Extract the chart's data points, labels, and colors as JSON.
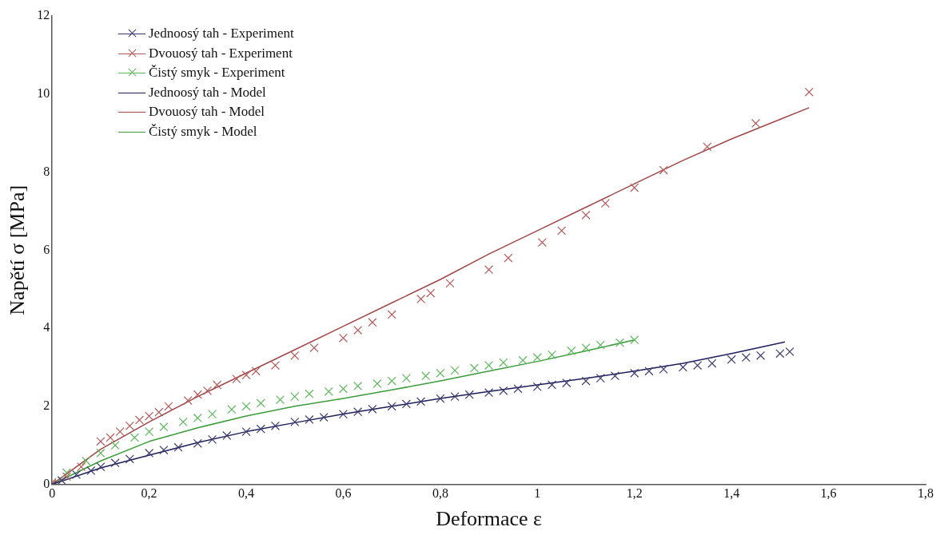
{
  "chart_data": {
    "type": "scatter",
    "xlabel": "Deformace ε",
    "ylabel": "Napětí σ [MPa]",
    "xlim": [
      0,
      1.8
    ],
    "xticks": [
      0,
      {
        "value": 0.2,
        "label": "0,2"
      },
      {
        "value": 0.4,
        "label": "0,4"
      },
      {
        "value": 0.6,
        "label": "0,6"
      },
      {
        "value": 0.8,
        "label": "0,8"
      },
      1,
      {
        "value": 1.2,
        "label": "1,2"
      },
      {
        "value": 1.4,
        "label": "1,4"
      },
      {
        "value": 1.6,
        "label": "1,6"
      },
      {
        "value": 1.8,
        "label": "1,8"
      }
    ],
    "ylim": [
      0,
      12
    ],
    "yticks": [
      0,
      2,
      4,
      6,
      8,
      10,
      12
    ],
    "grid": false,
    "legend": "top left",
    "series": [
      {
        "name": "Jednoosý tah - Experiment",
        "type": "scatter",
        "marker": "cross",
        "color": "#3a3a70",
        "x": [
          0,
          0.02,
          0.05,
          0.08,
          0.1,
          0.13,
          0.16,
          0.2,
          0.23,
          0.26,
          0.3,
          0.33,
          0.36,
          0.4,
          0.43,
          0.46,
          0.5,
          0.53,
          0.56,
          0.6,
          0.63,
          0.66,
          0.7,
          0.73,
          0.76,
          0.8,
          0.83,
          0.86,
          0.9,
          0.93,
          0.96,
          1.0,
          1.03,
          1.06,
          1.1,
          1.13,
          1.16,
          1.2,
          1.23,
          1.26,
          1.3,
          1.33,
          1.36,
          1.4,
          1.43,
          1.46,
          1.5,
          1.52
        ],
        "values": [
          0,
          0.1,
          0.25,
          0.35,
          0.45,
          0.55,
          0.65,
          0.8,
          0.88,
          0.95,
          1.05,
          1.15,
          1.25,
          1.35,
          1.42,
          1.5,
          1.6,
          1.66,
          1.72,
          1.8,
          1.86,
          1.93,
          2.0,
          2.06,
          2.12,
          2.2,
          2.25,
          2.3,
          2.35,
          2.4,
          2.45,
          2.5,
          2.55,
          2.6,
          2.65,
          2.72,
          2.78,
          2.85,
          2.9,
          2.95,
          3.0,
          3.05,
          3.1,
          3.2,
          3.25,
          3.3,
          3.35,
          3.4
        ]
      },
      {
        "name": "Dvouosý tah - Experiment",
        "type": "scatter",
        "marker": "cross",
        "color": "#b45a5a",
        "x": [
          0,
          0.03,
          0.06,
          0.1,
          0.12,
          0.14,
          0.16,
          0.18,
          0.2,
          0.22,
          0.24,
          0.28,
          0.3,
          0.32,
          0.34,
          0.38,
          0.4,
          0.42,
          0.46,
          0.5,
          0.54,
          0.6,
          0.63,
          0.66,
          0.7,
          0.76,
          0.78,
          0.82,
          0.9,
          0.94,
          1.01,
          1.05,
          1.1,
          1.14,
          1.2,
          1.26,
          1.35,
          1.45,
          1.56
        ],
        "values": [
          0.05,
          0.2,
          0.45,
          1.1,
          1.2,
          1.35,
          1.5,
          1.65,
          1.75,
          1.85,
          2.0,
          2.15,
          2.3,
          2.4,
          2.55,
          2.7,
          2.8,
          2.9,
          3.05,
          3.3,
          3.5,
          3.75,
          3.95,
          4.15,
          4.35,
          4.75,
          4.9,
          5.15,
          5.5,
          5.8,
          6.2,
          6.5,
          6.9,
          7.2,
          7.6,
          8.05,
          8.65,
          9.25,
          10.05
        ]
      },
      {
        "name": "Čistý smyk - Experiment",
        "type": "scatter",
        "marker": "cross",
        "color": "#5cb85c",
        "x": [
          0.03,
          0.07,
          0.1,
          0.13,
          0.17,
          0.2,
          0.23,
          0.27,
          0.3,
          0.33,
          0.37,
          0.4,
          0.43,
          0.47,
          0.5,
          0.53,
          0.57,
          0.6,
          0.63,
          0.67,
          0.7,
          0.73,
          0.77,
          0.8,
          0.83,
          0.87,
          0.9,
          0.93,
          0.97,
          1.0,
          1.03,
          1.07,
          1.1,
          1.13,
          1.17,
          1.2
        ],
        "values": [
          0.3,
          0.6,
          0.8,
          1.0,
          1.2,
          1.35,
          1.47,
          1.6,
          1.7,
          1.8,
          1.92,
          2.0,
          2.08,
          2.17,
          2.25,
          2.32,
          2.38,
          2.45,
          2.52,
          2.58,
          2.65,
          2.72,
          2.78,
          2.85,
          2.92,
          2.98,
          3.05,
          3.12,
          3.18,
          3.25,
          3.32,
          3.42,
          3.5,
          3.57,
          3.63,
          3.7
        ]
      },
      {
        "name": "Jednoosý tah - Model",
        "type": "line",
        "marker": "none",
        "color": "#1e1e5a",
        "x": [
          0,
          0.1,
          0.2,
          0.3,
          0.4,
          0.5,
          0.6,
          0.7,
          0.8,
          0.9,
          1.0,
          1.1,
          1.2,
          1.3,
          1.4,
          1.51
        ],
        "values": [
          0,
          0.42,
          0.75,
          1.07,
          1.35,
          1.58,
          1.8,
          2.0,
          2.2,
          2.38,
          2.55,
          2.72,
          2.9,
          3.1,
          3.35,
          3.65
        ]
      },
      {
        "name": "Dvouosý tah - Model",
        "type": "line",
        "marker": "none",
        "color": "#a04646",
        "x": [
          0,
          0.1,
          0.2,
          0.3,
          0.4,
          0.5,
          0.6,
          0.7,
          0.8,
          0.9,
          1.0,
          1.1,
          1.2,
          1.3,
          1.4,
          1.5,
          1.56
        ],
        "values": [
          0,
          0.9,
          1.6,
          2.25,
          2.85,
          3.45,
          4.05,
          4.65,
          5.25,
          5.9,
          6.5,
          7.1,
          7.7,
          8.3,
          8.85,
          9.35,
          9.65
        ]
      },
      {
        "name": "Čistý smyk - Model",
        "type": "line",
        "marker": "none",
        "color": "#3c9c3c",
        "x": [
          0,
          0.1,
          0.2,
          0.3,
          0.4,
          0.5,
          0.6,
          0.7,
          0.8,
          0.9,
          1.0,
          1.1,
          1.2
        ],
        "values": [
          0,
          0.6,
          1.1,
          1.45,
          1.75,
          2.0,
          2.2,
          2.42,
          2.65,
          2.9,
          3.15,
          3.42,
          3.7
        ]
      }
    ]
  }
}
